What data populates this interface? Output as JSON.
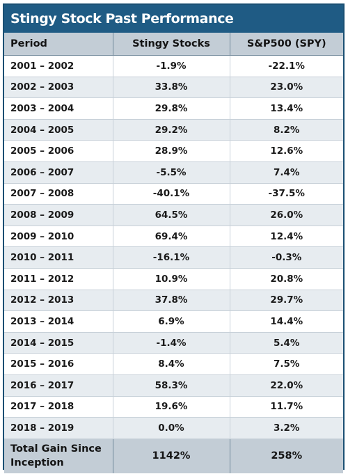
{
  "chart_data": {
    "type": "table",
    "title": "Stingy Stock Past Performance",
    "columns": [
      "Period",
      "Stingy Stocks",
      "S&P500 (SPY)"
    ],
    "rows": [
      {
        "period": "2001 – 2002",
        "stingy": "-1.9%",
        "spy": "-22.1%"
      },
      {
        "period": "2002 – 2003",
        "stingy": "33.8%",
        "spy": "23.0%"
      },
      {
        "period": "2003 – 2004",
        "stingy": "29.8%",
        "spy": "13.4%"
      },
      {
        "period": "2004 – 2005",
        "stingy": "29.2%",
        "spy": "8.2%"
      },
      {
        "period": "2005 – 2006",
        "stingy": "28.9%",
        "spy": "12.6%"
      },
      {
        "period": "2006 – 2007",
        "stingy": "-5.5%",
        "spy": "7.4%"
      },
      {
        "period": "2007 – 2008",
        "stingy": "-40.1%",
        "spy": "-37.5%"
      },
      {
        "period": "2008 – 2009",
        "stingy": "64.5%",
        "spy": "26.0%"
      },
      {
        "period": "2009 – 2010",
        "stingy": "69.4%",
        "spy": "12.4%"
      },
      {
        "period": "2010 – 2011",
        "stingy": "-16.1%",
        "spy": "-0.3%"
      },
      {
        "period": "2011 – 2012",
        "stingy": "10.9%",
        "spy": "20.8%"
      },
      {
        "period": "2012 – 2013",
        "stingy": "37.8%",
        "spy": "29.7%"
      },
      {
        "period": "2013 – 2014",
        "stingy": "6.9%",
        "spy": "14.4%"
      },
      {
        "period": "2014 – 2015",
        "stingy": "-1.4%",
        "spy": "5.4%"
      },
      {
        "period": "2015 – 2016",
        "stingy": "8.4%",
        "spy": "7.5%"
      },
      {
        "period": "2016 – 2017",
        "stingy": "58.3%",
        "spy": "22.0%"
      },
      {
        "period": "2017 – 2018",
        "stingy": "19.6%",
        "spy": "11.7%"
      },
      {
        "period": "2018 – 2019",
        "stingy": "0.0%",
        "spy": "3.2%"
      }
    ],
    "total": {
      "label": "Total Gain Since Inception",
      "stingy": "1142%",
      "spy": "258%"
    }
  },
  "colors": {
    "title_bar": "#1f5b84",
    "header_bg": "#c3cdd6",
    "alt_row": "#e7ecf0"
  }
}
